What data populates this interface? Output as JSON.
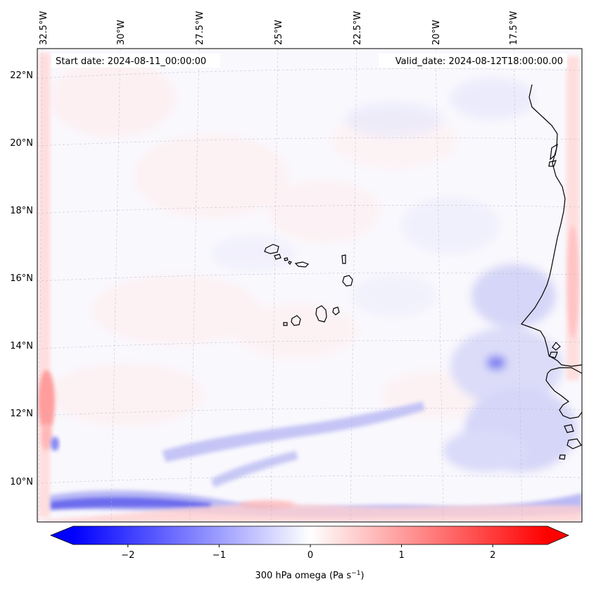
{
  "map": {
    "start_label": "Start date: 2024-08-11_00:00:00",
    "valid_label": "Valid_date: 2024-08-12T18:00:00.00",
    "lon_labels": [
      "32.5°W",
      "30°W",
      "27.5°W",
      "25°W",
      "22.5°W",
      "20°W",
      "17.5°W"
    ],
    "lat_labels": [
      "22°N",
      "20°N",
      "18°N",
      "16°N",
      "14°N",
      "12°N",
      "10°N"
    ]
  },
  "colorbar": {
    "label_main": "300 hPa omega (Pa s",
    "label_exp": "−1",
    "label_close": ")",
    "ticks": [
      {
        "value": -2,
        "label": "−2"
      },
      {
        "value": -1,
        "label": "−1"
      },
      {
        "value": 0,
        "label": "0"
      },
      {
        "value": 1,
        "label": "1"
      },
      {
        "value": 2,
        "label": "2"
      }
    ],
    "range": [
      -2.6,
      2.6
    ],
    "negative_color": "#0000ff",
    "positive_color": "#ff0000"
  }
}
